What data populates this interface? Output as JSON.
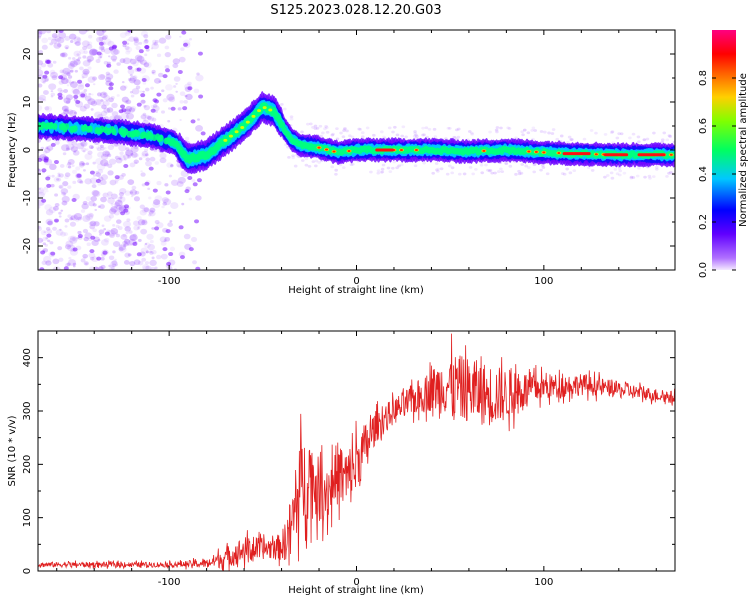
{
  "title": "S125.2023.028.12.20.G03",
  "chart_data": [
    {
      "type": "heatmap",
      "title": "",
      "xlabel": "Height of straight line (km)",
      "ylabel": "Frequency (Hz)",
      "xlim": [
        -170,
        170
      ],
      "ylim": [
        -25,
        25
      ],
      "x_ticks": [
        -100,
        0,
        100
      ],
      "x_tick_labels": [
        "-100",
        "0",
        "100"
      ],
      "y_ticks": [
        -20,
        -10,
        0,
        10,
        20
      ],
      "y_tick_labels": [
        "-20",
        "-10",
        "0",
        "10",
        "20"
      ],
      "grid": false,
      "ridge": {
        "description_points_x": [
          -170,
          -150,
          -130,
          -110,
          -97,
          -90,
          -80,
          -70,
          -60,
          -50,
          -44,
          -38,
          -34,
          -30,
          -20,
          -10,
          0,
          20,
          40,
          60,
          80,
          100,
          120,
          140,
          160,
          170
        ],
        "description_points_y": [
          5,
          4.5,
          4,
          3,
          1.5,
          -2,
          -1,
          2,
          5,
          9,
          8,
          4,
          2,
          1,
          0.5,
          -0.5,
          0,
          0,
          0,
          -0.3,
          0,
          -0.5,
          -0.8,
          -1,
          -1,
          -1
        ]
      },
      "colorbar": {
        "label": "Normalized spectral amplitude",
        "range": [
          0,
          1
        ],
        "ticks": [
          0.0,
          0.2,
          0.4,
          0.6,
          0.8
        ],
        "tick_labels": [
          "0.0",
          "0.2",
          "0.4",
          "0.6",
          "0.8"
        ],
        "colormap": "gist_rainbow_r",
        "colors": [
          "#f0e8ff",
          "#8000ff",
          "#0000ff",
          "#00c8ff",
          "#00ff40",
          "#c8ff00",
          "#ffa000",
          "#ff0000",
          "#ff0080"
        ]
      }
    },
    {
      "type": "line",
      "title": "",
      "xlabel": "Height of straight line (km)",
      "ylabel": "SNR (10 * v/v)",
      "xlim": [
        -170,
        170
      ],
      "ylim": [
        0,
        450
      ],
      "x_ticks": [
        -100,
        0,
        100
      ],
      "x_tick_labels": [
        "-100",
        "0",
        "100"
      ],
      "y_ticks": [
        0,
        100,
        200,
        300,
        400
      ],
      "y_tick_labels": [
        "0",
        "100",
        "200",
        "300",
        "400"
      ],
      "grid": false,
      "series": [
        {
          "color": "#e02020",
          "trend_x": [
            -170,
            -100,
            -80,
            -70,
            -60,
            -50,
            -40,
            -35,
            -30,
            -25,
            -20,
            -15,
            -10,
            -5,
            0,
            10,
            20,
            30,
            40,
            50,
            60,
            70,
            80,
            90,
            100,
            120,
            140,
            160,
            170
          ],
          "trend_y": [
            12,
            12,
            14,
            25,
            40,
            42,
            45,
            80,
            160,
            180,
            150,
            150,
            185,
            170,
            200,
            270,
            300,
            320,
            340,
            350,
            340,
            330,
            330,
            340,
            345,
            350,
            340,
            330,
            325
          ],
          "noise_amplitude_y": [
            5,
            5,
            8,
            20,
            25,
            20,
            25,
            60,
            90,
            80,
            60,
            60,
            60,
            60,
            60,
            30,
            25,
            30,
            40,
            60,
            60,
            60,
            50,
            35,
            25,
            20,
            15,
            12,
            12
          ]
        }
      ]
    }
  ]
}
